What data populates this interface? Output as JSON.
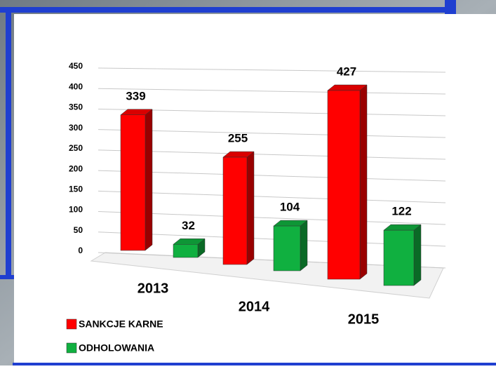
{
  "chart_data": {
    "type": "bar3d",
    "categories": [
      "2013",
      "2014",
      "2015"
    ],
    "series": [
      {
        "name": "SANKCJE KARNE",
        "color": "#ff0000",
        "values": [
          339,
          255,
          427
        ]
      },
      {
        "name": "ODHOLOWANIA",
        "color": "#10b040",
        "values": [
          32,
          104,
          122
        ]
      }
    ],
    "ylim": [
      0,
      450
    ],
    "yticks": [
      0,
      50,
      100,
      150,
      200,
      250,
      300,
      350,
      400,
      450
    ],
    "grid": true,
    "legend": "bottom-left"
  }
}
